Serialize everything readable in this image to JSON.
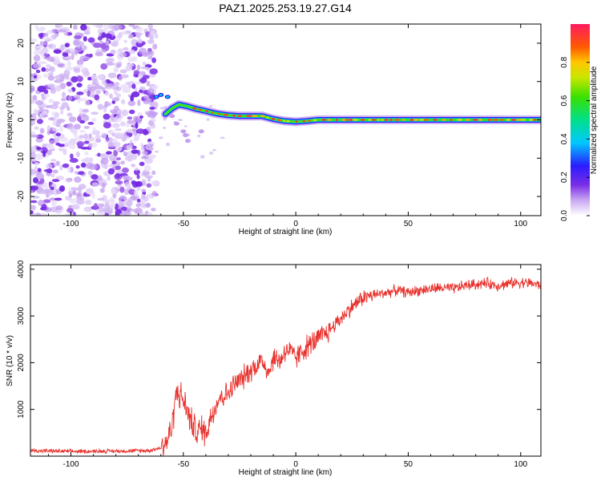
{
  "title": "PAZ1.2025.253.19.27.G14",
  "colors": {
    "snr_line": "#e8302b",
    "frame": "#000000"
  },
  "chart_data": [
    {
      "type": "heatmap",
      "xlabel": "Height of straight line (km)",
      "ylabel": "Frequency (Hz)",
      "xlim": [
        -118,
        109
      ],
      "ylim": [
        -25,
        25
      ],
      "xticks": [
        -100,
        -50,
        0,
        50,
        100
      ],
      "yticks": [
        -20,
        -10,
        0,
        10,
        20
      ],
      "colorbar": {
        "label": "Normalized spectral amplitude",
        "range": [
          0,
          1
        ],
        "ticks": [
          "0.0",
          "0.2",
          "0.4",
          "0.6",
          "0.8"
        ]
      },
      "main_track": {
        "x": [
          -58,
          -55,
          -52,
          -48,
          -44,
          -40,
          -35,
          -30,
          -25,
          -20,
          -15,
          -10,
          -5,
          0,
          5,
          10,
          20,
          30,
          40,
          50,
          60,
          70,
          80,
          90,
          100,
          109
        ],
        "frequency": [
          1.5,
          3,
          4,
          3.5,
          2.8,
          2.3,
          1.6,
          1.2,
          1.0,
          1.0,
          1.0,
          0.2,
          -0.3,
          -0.5,
          -0.3,
          0.0,
          0.0,
          0.0,
          0.0,
          0.0,
          0.0,
          0.0,
          0.0,
          0.0,
          0.0,
          0.0
        ]
      },
      "noise_region_x": [
        -118,
        -62
      ]
    },
    {
      "type": "line",
      "xlabel": "Height of straight line (km)",
      "ylabel": "SNR (10 * v/v)",
      "xlim": [
        -118,
        109
      ],
      "ylim": [
        0,
        4100
      ],
      "xticks": [
        -100,
        -50,
        0,
        50,
        100
      ],
      "yticks": [
        1000,
        2000,
        3000,
        4000
      ],
      "series": [
        {
          "name": "SNR",
          "x": [
            -118,
            -100,
            -80,
            -65,
            -60,
            -57,
            -55,
            -53,
            -50,
            -47,
            -44,
            -42,
            -40,
            -37,
            -34,
            -30,
            -27,
            -24,
            -20,
            -15,
            -12,
            -10,
            -7,
            -4,
            0,
            5,
            10,
            15,
            20,
            25,
            30,
            35,
            40,
            45,
            50,
            55,
            60,
            65,
            70,
            75,
            80,
            85,
            90,
            95,
            100,
            105,
            109
          ],
          "y": [
            120,
            100,
            110,
            120,
            180,
            350,
            650,
            1400,
            1200,
            800,
            500,
            600,
            500,
            950,
            1250,
            1350,
            1550,
            1650,
            1850,
            2050,
            1800,
            2100,
            2050,
            2300,
            2100,
            2350,
            2500,
            2700,
            2950,
            3200,
            3400,
            3450,
            3500,
            3550,
            3500,
            3550,
            3580,
            3600,
            3580,
            3650,
            3680,
            3700,
            3650,
            3700,
            3720,
            3700,
            3650
          ]
        }
      ]
    }
  ]
}
